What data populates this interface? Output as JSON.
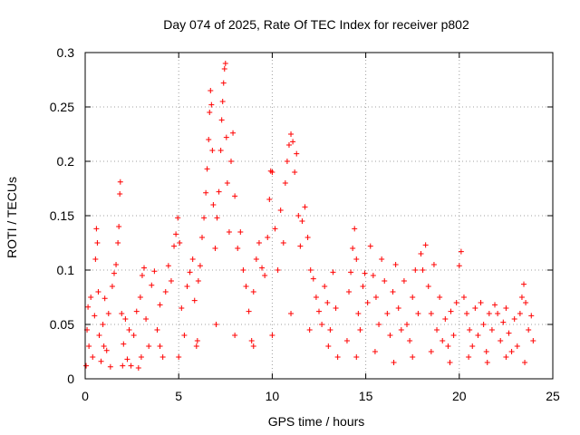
{
  "chart_data": {
    "type": "scatter",
    "title": "Day 074 of 2025, Rate Of TEC Index for receiver p802",
    "xlabel": "GPS time / hours",
    "ylabel": "ROTI / TECUs",
    "xlim": [
      0,
      25
    ],
    "ylim": [
      0,
      0.3
    ],
    "x_ticks": [
      "0",
      "5",
      "10",
      "15",
      "20",
      "25"
    ],
    "y_ticks": [
      "0",
      "0.05",
      "0.1",
      "0.15",
      "0.2",
      "0.25",
      "0.3"
    ],
    "x_tick_values": [
      0,
      5,
      10,
      15,
      20,
      25
    ],
    "y_tick_values": [
      0,
      0.05,
      0.1,
      0.15,
      0.2,
      0.25,
      0.3
    ],
    "grid": true,
    "marker": "plus",
    "color": "#ff0000",
    "series": [
      {
        "name": "",
        "points": [
          [
            0.05,
            0.012
          ],
          [
            0.1,
            0.045
          ],
          [
            0.15,
            0.066
          ],
          [
            0.2,
            0.03
          ],
          [
            0.3,
            0.075
          ],
          [
            0.4,
            0.02
          ],
          [
            0.5,
            0.058
          ],
          [
            0.55,
            0.11
          ],
          [
            0.6,
            0.138
          ],
          [
            0.65,
            0.125
          ],
          [
            0.7,
            0.08
          ],
          [
            0.75,
            0.04
          ],
          [
            0.85,
            0.016
          ],
          [
            0.95,
            0.05
          ],
          [
            1.05,
            0.074
          ],
          [
            1.15,
            0.026
          ],
          [
            1.25,
            0.06
          ],
          [
            1.35,
            0.011
          ],
          [
            1.45,
            0.085
          ],
          [
            1.55,
            0.097
          ],
          [
            1.65,
            0.105
          ],
          [
            1.75,
            0.125
          ],
          [
            1.8,
            0.14
          ],
          [
            1.85,
            0.17
          ],
          [
            1.88,
            0.181
          ],
          [
            1.95,
            0.06
          ],
          [
            2.05,
            0.032
          ],
          [
            2.15,
            0.055
          ],
          [
            2.25,
            0.018
          ],
          [
            2.35,
            0.045
          ],
          [
            2.45,
            0.012
          ],
          [
            2.6,
            0.04
          ],
          [
            2.75,
            0.062
          ],
          [
            2.85,
            0.01
          ],
          [
            2.95,
            0.075
          ],
          [
            3.05,
            0.095
          ],
          [
            3.15,
            0.102
          ],
          [
            3.25,
            0.055
          ],
          [
            3.4,
            0.03
          ],
          [
            3.55,
            0.086
          ],
          [
            3.7,
            0.099
          ],
          [
            3.85,
            0.045
          ],
          [
            4.0,
            0.068
          ],
          [
            4.15,
            0.02
          ],
          [
            4.3,
            0.08
          ],
          [
            4.45,
            0.104
          ],
          [
            4.6,
            0.09
          ],
          [
            4.75,
            0.122
          ],
          [
            4.85,
            0.133
          ],
          [
            4.95,
            0.148
          ],
          [
            5.05,
            0.125
          ],
          [
            5.15,
            0.065
          ],
          [
            5.3,
            0.04
          ],
          [
            5.45,
            0.085
          ],
          [
            5.6,
            0.098
          ],
          [
            5.75,
            0.11
          ],
          [
            5.85,
            0.072
          ],
          [
            5.95,
            0.03
          ],
          [
            6.05,
            0.09
          ],
          [
            6.15,
            0.104
          ],
          [
            6.25,
            0.13
          ],
          [
            6.35,
            0.148
          ],
          [
            6.45,
            0.171
          ],
          [
            6.52,
            0.193
          ],
          [
            6.6,
            0.22
          ],
          [
            6.65,
            0.245
          ],
          [
            6.7,
            0.265
          ],
          [
            6.75,
            0.252
          ],
          [
            6.8,
            0.21
          ],
          [
            6.85,
            0.16
          ],
          [
            6.95,
            0.12
          ],
          [
            7.05,
            0.148
          ],
          [
            7.15,
            0.172
          ],
          [
            7.25,
            0.21
          ],
          [
            7.3,
            0.238
          ],
          [
            7.35,
            0.255
          ],
          [
            7.4,
            0.272
          ],
          [
            7.45,
            0.285
          ],
          [
            7.5,
            0.29
          ],
          [
            7.55,
            0.222
          ],
          [
            7.6,
            0.18
          ],
          [
            7.7,
            0.135
          ],
          [
            7.8,
            0.2
          ],
          [
            7.9,
            0.226
          ],
          [
            8.0,
            0.168
          ],
          [
            8.15,
            0.12
          ],
          [
            8.3,
            0.135
          ],
          [
            8.45,
            0.1
          ],
          [
            8.6,
            0.085
          ],
          [
            8.75,
            0.062
          ],
          [
            8.9,
            0.035
          ],
          [
            9.0,
            0.08
          ],
          [
            9.15,
            0.11
          ],
          [
            9.3,
            0.125
          ],
          [
            9.45,
            0.102
          ],
          [
            9.6,
            0.095
          ],
          [
            9.75,
            0.13
          ],
          [
            9.85,
            0.165
          ],
          [
            9.92,
            0.191
          ],
          [
            10.0,
            0.19
          ],
          [
            10.15,
            0.138
          ],
          [
            10.3,
            0.1
          ],
          [
            10.45,
            0.155
          ],
          [
            10.6,
            0.125
          ],
          [
            10.7,
            0.18
          ],
          [
            10.8,
            0.2
          ],
          [
            10.9,
            0.215
          ],
          [
            11.0,
            0.225
          ],
          [
            11.1,
            0.218
          ],
          [
            11.2,
            0.19
          ],
          [
            11.3,
            0.207
          ],
          [
            11.4,
            0.15
          ],
          [
            11.5,
            0.122
          ],
          [
            11.6,
            0.145
          ],
          [
            11.75,
            0.158
          ],
          [
            11.9,
            0.13
          ],
          [
            12.05,
            0.1
          ],
          [
            12.2,
            0.092
          ],
          [
            12.35,
            0.075
          ],
          [
            12.5,
            0.062
          ],
          [
            12.65,
            0.05
          ],
          [
            12.8,
            0.085
          ],
          [
            12.95,
            0.07
          ],
          [
            13.1,
            0.045
          ],
          [
            13.25,
            0.098
          ],
          [
            13.4,
            0.065
          ],
          [
            13.5,
            0.02
          ],
          [
            14.0,
            0.035
          ],
          [
            14.1,
            0.08
          ],
          [
            14.2,
            0.098
          ],
          [
            14.3,
            0.12
          ],
          [
            14.4,
            0.138
          ],
          [
            14.5,
            0.11
          ],
          [
            14.6,
            0.06
          ],
          [
            14.7,
            0.045
          ],
          [
            14.85,
            0.085
          ],
          [
            14.95,
            0.097
          ],
          [
            15.1,
            0.07
          ],
          [
            15.25,
            0.122
          ],
          [
            15.4,
            0.095
          ],
          [
            15.55,
            0.075
          ],
          [
            15.7,
            0.05
          ],
          [
            15.85,
            0.11
          ],
          [
            16.0,
            0.09
          ],
          [
            16.15,
            0.06
          ],
          [
            16.3,
            0.04
          ],
          [
            16.45,
            0.08
          ],
          [
            16.6,
            0.105
          ],
          [
            16.75,
            0.065
          ],
          [
            16.9,
            0.045
          ],
          [
            17.05,
            0.09
          ],
          [
            17.2,
            0.05
          ],
          [
            17.35,
            0.035
          ],
          [
            17.5,
            0.075
          ],
          [
            17.65,
            0.1
          ],
          [
            17.8,
            0.06
          ],
          [
            17.95,
            0.115
          ],
          [
            18.05,
            0.1
          ],
          [
            18.2,
            0.123
          ],
          [
            18.35,
            0.085
          ],
          [
            18.5,
            0.06
          ],
          [
            18.65,
            0.105
          ],
          [
            18.8,
            0.045
          ],
          [
            18.95,
            0.075
          ],
          [
            19.1,
            0.035
          ],
          [
            19.25,
            0.055
          ],
          [
            19.4,
            0.03
          ],
          [
            19.55,
            0.062
          ],
          [
            19.7,
            0.04
          ],
          [
            19.85,
            0.07
          ],
          [
            20.0,
            0.104
          ],
          [
            20.1,
            0.117
          ],
          [
            20.25,
            0.075
          ],
          [
            20.4,
            0.06
          ],
          [
            20.55,
            0.045
          ],
          [
            20.7,
            0.03
          ],
          [
            20.85,
            0.065
          ],
          [
            21.0,
            0.04
          ],
          [
            21.15,
            0.07
          ],
          [
            21.3,
            0.05
          ],
          [
            21.45,
            0.025
          ],
          [
            21.6,
            0.06
          ],
          [
            21.75,
            0.045
          ],
          [
            21.9,
            0.068
          ],
          [
            22.05,
            0.06
          ],
          [
            22.2,
            0.035
          ],
          [
            22.35,
            0.052
          ],
          [
            22.5,
            0.065
          ],
          [
            22.65,
            0.042
          ],
          [
            22.8,
            0.025
          ],
          [
            22.95,
            0.055
          ],
          [
            23.1,
            0.03
          ],
          [
            23.25,
            0.06
          ],
          [
            23.35,
            0.075
          ],
          [
            23.45,
            0.087
          ],
          [
            23.55,
            0.07
          ],
          [
            23.7,
            0.045
          ],
          [
            23.85,
            0.058
          ],
          [
            23.95,
            0.035
          ],
          [
            1.0,
            0.03
          ],
          [
            2.0,
            0.012
          ],
          [
            3.0,
            0.02
          ],
          [
            4.0,
            0.03
          ],
          [
            5.0,
            0.02
          ],
          [
            6.0,
            0.035
          ],
          [
            7.0,
            0.05
          ],
          [
            8.0,
            0.04
          ],
          [
            9.0,
            0.03
          ],
          [
            10.0,
            0.04
          ],
          [
            11.0,
            0.06
          ],
          [
            12.0,
            0.045
          ],
          [
            13.0,
            0.03
          ],
          [
            14.5,
            0.02
          ],
          [
            15.5,
            0.025
          ],
          [
            16.5,
            0.015
          ],
          [
            17.5,
            0.02
          ],
          [
            18.5,
            0.025
          ],
          [
            19.5,
            0.015
          ],
          [
            20.5,
            0.02
          ],
          [
            21.5,
            0.015
          ],
          [
            22.5,
            0.02
          ],
          [
            23.5,
            0.015
          ]
        ]
      }
    ]
  }
}
